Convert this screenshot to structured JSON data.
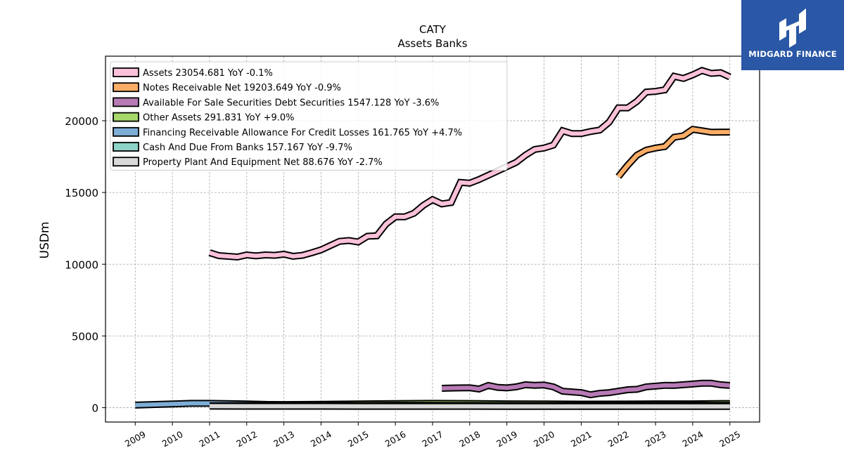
{
  "chart_data": {
    "type": "area",
    "title": "CATY",
    "subtitle": "Assets Banks",
    "ylabel": "USDm",
    "xlim": [
      2008.2,
      2025.8
    ],
    "ylim": [
      -1000,
      24500
    ],
    "yticks": [
      0,
      5000,
      10000,
      15000,
      20000
    ],
    "ytick_labels": [
      "0",
      "5000",
      "10000",
      "15000",
      "20000"
    ],
    "xticks": [
      2009,
      2010,
      2011,
      2012,
      2013,
      2014,
      2015,
      2016,
      2017,
      2018,
      2019,
      2020,
      2021,
      2022,
      2023,
      2024,
      2025
    ],
    "xtick_labels": [
      "2009",
      "2010",
      "2011",
      "2012",
      "2013",
      "2014",
      "2015",
      "2016",
      "2017",
      "2018",
      "2019",
      "2020",
      "2021",
      "2022",
      "2023",
      "2024",
      "2025"
    ],
    "grid": true,
    "legend_position": "top-left",
    "series": [
      {
        "name": "Assets",
        "legend": "Assets  23054.681 YoY -0.1%",
        "color": "#fbc1d9",
        "x": [
          2011.0,
          2011.25,
          2011.5,
          2011.75,
          2012.0,
          2012.25,
          2012.5,
          2012.75,
          2013.0,
          2013.25,
          2013.5,
          2013.75,
          2014.0,
          2014.25,
          2014.5,
          2014.75,
          2015.0,
          2015.25,
          2015.5,
          2015.75,
          2016.0,
          2016.25,
          2016.5,
          2016.75,
          2017.0,
          2017.25,
          2017.5,
          2017.75,
          2018.0,
          2018.25,
          2018.5,
          2018.75,
          2019.0,
          2019.25,
          2019.5,
          2019.75,
          2020.0,
          2020.25,
          2020.5,
          2020.75,
          2021.0,
          2021.25,
          2021.5,
          2021.75,
          2022.0,
          2022.25,
          2022.5,
          2022.75,
          2023.0,
          2023.25,
          2023.5,
          2023.75,
          2024.0,
          2024.25,
          2024.5,
          2024.75,
          2025.0
        ],
        "y": [
          10800,
          10600,
          10550,
          10500,
          10650,
          10580,
          10650,
          10620,
          10700,
          10550,
          10620,
          10800,
          11000,
          11300,
          11600,
          11650,
          11550,
          11950,
          11980,
          12800,
          13300,
          13300,
          13550,
          14100,
          14500,
          14200,
          14300,
          15700,
          15650,
          15900,
          16200,
          16500,
          16800,
          17100,
          17600,
          18000,
          18100,
          18300,
          19300,
          19100,
          19100,
          19250,
          19350,
          19900,
          20900,
          20900,
          21350,
          22000,
          22050,
          22150,
          23100,
          22950,
          23200,
          23500,
          23300,
          23350,
          23050
        ]
      },
      {
        "name": "Notes Receivable Net",
        "legend": "Notes Receivable Net  19203.649 YoY -0.9%",
        "color": "#fbad66",
        "x": [
          2022.0,
          2022.25,
          2022.5,
          2022.75,
          2023.0,
          2023.25,
          2023.5,
          2023.75,
          2024.0,
          2024.25,
          2024.5,
          2024.75,
          2025.0
        ],
        "y": [
          16100,
          16900,
          17600,
          17950,
          18100,
          18200,
          18850,
          18950,
          19400,
          19300,
          19200,
          19210,
          19210
        ]
      },
      {
        "name": "Available For Sale Securities Debt Securities",
        "legend": "Available For Sale Securities Debt Securities  1547.128 YoY -3.6%",
        "color": "#b77ab5",
        "x": [
          2017.25,
          2017.5,
          2017.75,
          2018.0,
          2018.25,
          2018.5,
          2018.75,
          2019.0,
          2019.25,
          2019.5,
          2019.75,
          2020.0,
          2020.25,
          2020.5,
          2020.75,
          2021.0,
          2021.25,
          2021.5,
          2021.75,
          2022.0,
          2022.25,
          2022.5,
          2022.75,
          2023.0,
          2023.25,
          2023.5,
          2023.75,
          2024.0,
          2024.25,
          2024.5,
          2024.75,
          2025.0
        ],
        "y": [
          1350,
          1370,
          1380,
          1390,
          1300,
          1550,
          1420,
          1380,
          1450,
          1600,
          1560,
          1580,
          1450,
          1150,
          1100,
          1050,
          900,
          1000,
          1050,
          1150,
          1250,
          1280,
          1450,
          1500,
          1560,
          1550,
          1600,
          1650,
          1700,
          1700,
          1600,
          1550
        ]
      },
      {
        "name": "Other Assets",
        "legend": "Other Assets  291.831 YoY +9.0%",
        "color": "#a6d96a",
        "x": [
          2011.0,
          2012.0,
          2013.0,
          2014.0,
          2015.0,
          2016.0,
          2017.0,
          2018.0,
          2019.0,
          2020.0,
          2021.0,
          2022.0,
          2023.0,
          2024.0,
          2025.0
        ],
        "y": [
          250,
          230,
          220,
          240,
          260,
          280,
          300,
          290,
          270,
          260,
          250,
          255,
          270,
          268,
          292
        ]
      },
      {
        "name": "Financing Receivable Allowance For Credit Losses",
        "legend": "Financing Receivable Allowance For Credit Losses  161.765 YoY +4.7%",
        "color": "#7eaed6",
        "x": [
          2009.0,
          2010.0,
          2010.5,
          2011.0,
          2012.0,
          2013.0,
          2014.0,
          2015.0,
          2016.0,
          2017.0,
          2018.0,
          2019.0,
          2020.0,
          2021.0,
          2022.0,
          2023.0,
          2024.0,
          2025.0
        ],
        "y": [
          180,
          260,
          300,
          300,
          260,
          200,
          170,
          150,
          140,
          135,
          130,
          128,
          140,
          150,
          140,
          150,
          155,
          162
        ]
      },
      {
        "name": "Cash And Due From Banks",
        "legend": "Cash And Due From Banks  157.167 YoY -9.7%",
        "color": "#8dd3c7",
        "x": [
          2011.0,
          2012.0,
          2013.0,
          2014.0,
          2015.0,
          2016.0,
          2017.0,
          2018.0,
          2019.0,
          2020.0,
          2021.0,
          2022.0,
          2023.0,
          2024.0,
          2025.0
        ],
        "y": [
          130,
          150,
          140,
          160,
          150,
          170,
          160,
          155,
          150,
          145,
          160,
          170,
          180,
          175,
          157
        ]
      },
      {
        "name": "Property Plant And Equipment Net",
        "legend": "Property Plant And Equipment Net  88.676 YoY -2.7%",
        "color": "#d9d9d9",
        "x": [
          2011.0,
          2012.0,
          2013.0,
          2014.0,
          2015.0,
          2016.0,
          2017.0,
          2018.0,
          2019.0,
          2020.0,
          2021.0,
          2022.0,
          2023.0,
          2024.0,
          2025.0
        ],
        "y": [
          105,
          103,
          101,
          99,
          97,
          96,
          95,
          94,
          93,
          92,
          91,
          91,
          90,
          90,
          89
        ]
      }
    ]
  },
  "logo": {
    "text": "MIDGARD FINANCE",
    "color": "#2a57a6"
  }
}
